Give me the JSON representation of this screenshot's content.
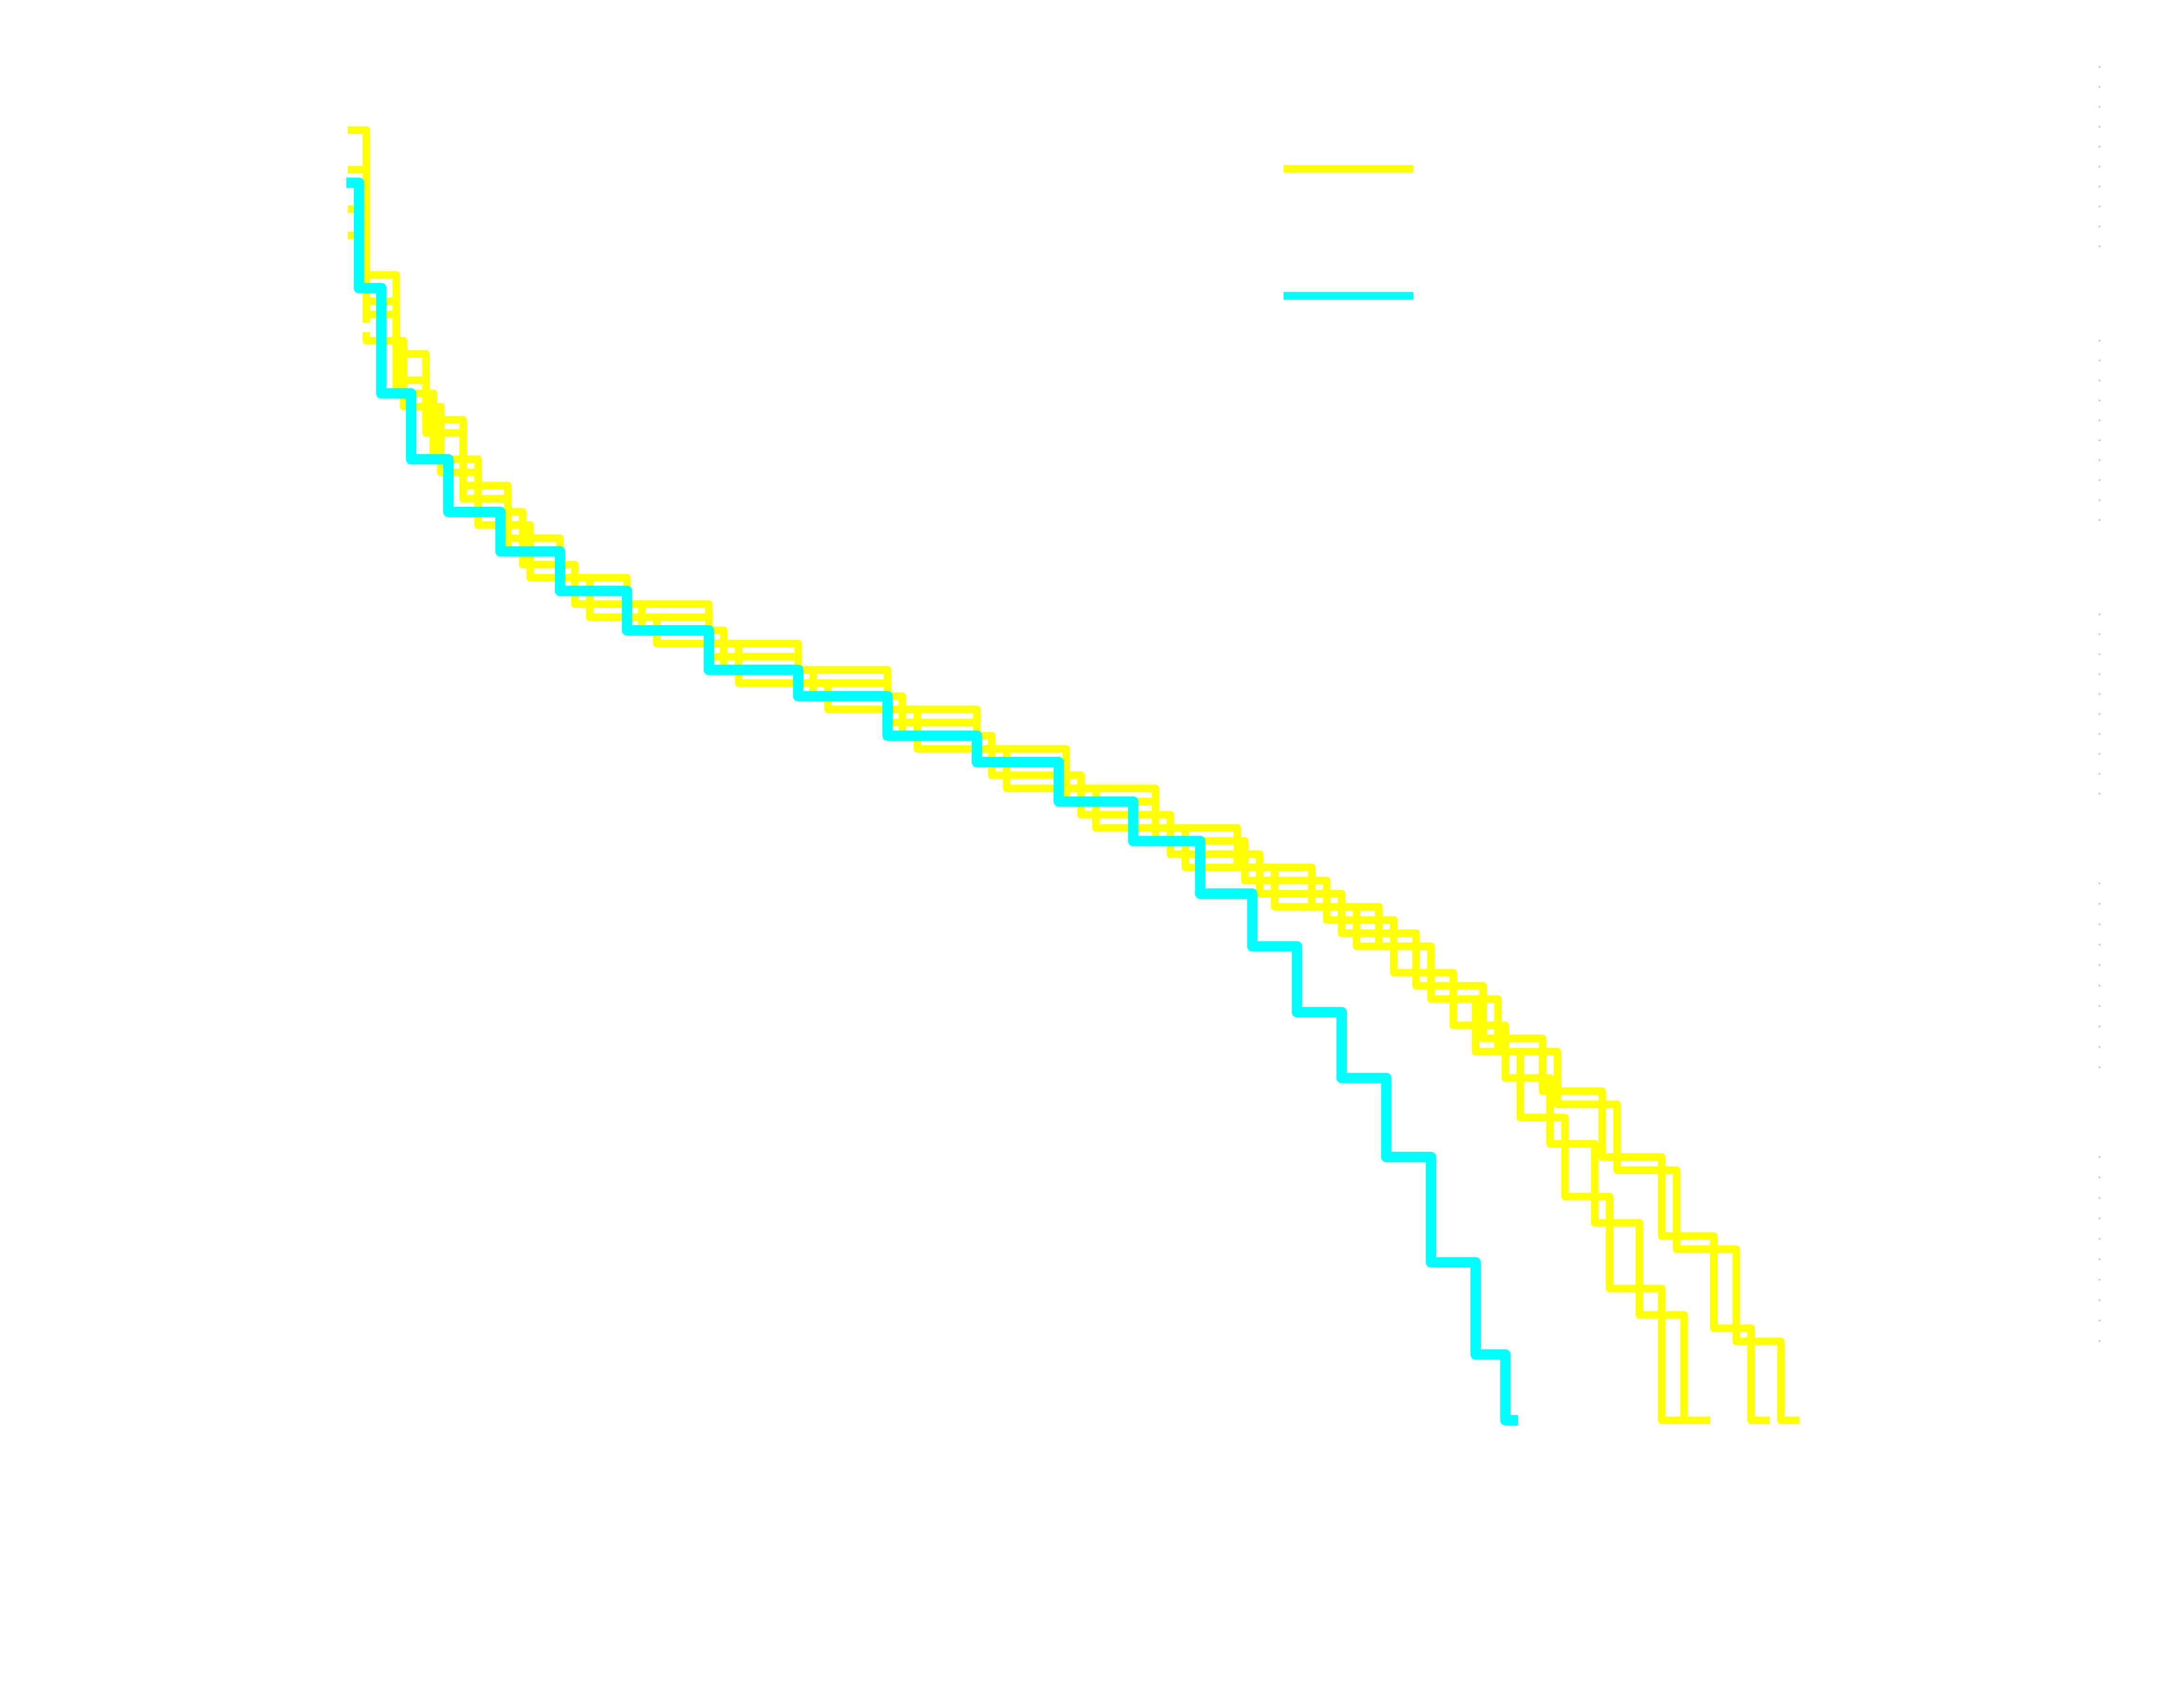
{
  "chart_data": {
    "type": "line",
    "title": "",
    "xlabel": "",
    "ylabel": "",
    "x_scale": "log",
    "y_scale": "log",
    "grid": false,
    "legend": {
      "placement": "top-right",
      "entries": [
        {
          "label": "",
          "color": "#ffff00"
        },
        {
          "label": "",
          "color": "#00ffff"
        }
      ]
    },
    "series": [
      {
        "color": "#ffff00",
        "points": [
          [
            0,
            0.02
          ],
          [
            0.02,
            0.13
          ],
          [
            0.04,
            0.19
          ],
          [
            0.06,
            0.24
          ],
          [
            0.09,
            0.29
          ],
          [
            0.12,
            0.33
          ],
          [
            0.16,
            0.36
          ],
          [
            0.21,
            0.38
          ],
          [
            0.27,
            0.41
          ],
          [
            0.33,
            0.43
          ],
          [
            0.39,
            0.46
          ],
          [
            0.45,
            0.49
          ],
          [
            0.51,
            0.52
          ],
          [
            0.57,
            0.55
          ],
          [
            0.62,
            0.58
          ],
          [
            0.67,
            0.61
          ],
          [
            0.71,
            0.64
          ],
          [
            0.74,
            0.68
          ],
          [
            0.77,
            0.72
          ],
          [
            0.8,
            0.77
          ],
          [
            0.83,
            0.83
          ],
          [
            0.86,
            0.9
          ],
          [
            0.9,
            1.0
          ]
        ]
      },
      {
        "color": "#ffff00",
        "points": [
          [
            0,
            0.05
          ],
          [
            0.02,
            0.15
          ],
          [
            0.04,
            0.21
          ],
          [
            0.06,
            0.25
          ],
          [
            0.09,
            0.3
          ],
          [
            0.12,
            0.34
          ],
          [
            0.16,
            0.37
          ],
          [
            0.21,
            0.39
          ],
          [
            0.27,
            0.42
          ],
          [
            0.33,
            0.44
          ],
          [
            0.39,
            0.47
          ],
          [
            0.45,
            0.5
          ],
          [
            0.51,
            0.53
          ],
          [
            0.57,
            0.56
          ],
          [
            0.63,
            0.59
          ],
          [
            0.68,
            0.62
          ],
          [
            0.72,
            0.66
          ],
          [
            0.76,
            0.7
          ],
          [
            0.79,
            0.74
          ],
          [
            0.82,
            0.79
          ],
          [
            0.85,
            0.85
          ],
          [
            0.88,
            0.92
          ],
          [
            0.91,
            1.0
          ]
        ]
      },
      {
        "color": "#ffff00",
        "points": [
          [
            0,
            0.08
          ],
          [
            0.02,
            0.16
          ],
          [
            0.04,
            0.22
          ],
          [
            0.07,
            0.27
          ],
          [
            0.1,
            0.31
          ],
          [
            0.13,
            0.35
          ],
          [
            0.17,
            0.38
          ],
          [
            0.22,
            0.4
          ],
          [
            0.28,
            0.43
          ],
          [
            0.34,
            0.45
          ],
          [
            0.4,
            0.48
          ],
          [
            0.46,
            0.51
          ],
          [
            0.52,
            0.54
          ],
          [
            0.58,
            0.57
          ],
          [
            0.64,
            0.6
          ],
          [
            0.69,
            0.63
          ],
          [
            0.74,
            0.67
          ],
          [
            0.78,
            0.71
          ],
          [
            0.82,
            0.75
          ],
          [
            0.86,
            0.8
          ],
          [
            0.9,
            0.86
          ],
          [
            0.93,
            0.93
          ],
          [
            0.95,
            1.0
          ]
        ]
      },
      {
        "color": "#ffff00",
        "points": [
          [
            0,
            0.1
          ],
          [
            0.02,
            0.18
          ],
          [
            0.05,
            0.23
          ],
          [
            0.07,
            0.28
          ],
          [
            0.1,
            0.32
          ],
          [
            0.14,
            0.36
          ],
          [
            0.18,
            0.39
          ],
          [
            0.23,
            0.41
          ],
          [
            0.29,
            0.44
          ],
          [
            0.35,
            0.46
          ],
          [
            0.41,
            0.49
          ],
          [
            0.47,
            0.52
          ],
          [
            0.53,
            0.55
          ],
          [
            0.59,
            0.58
          ],
          [
            0.65,
            0.61
          ],
          [
            0.7,
            0.64
          ],
          [
            0.75,
            0.68
          ],
          [
            0.79,
            0.72
          ],
          [
            0.83,
            0.76
          ],
          [
            0.87,
            0.81
          ],
          [
            0.91,
            0.87
          ],
          [
            0.95,
            0.94
          ],
          [
            0.97,
            1.0
          ]
        ]
      },
      {
        "color": "#00ffff",
        "points": [
          [
            0,
            0.06
          ],
          [
            0.01,
            0.14
          ],
          [
            0.03,
            0.22
          ],
          [
            0.05,
            0.27
          ],
          [
            0.08,
            0.31
          ],
          [
            0.12,
            0.34
          ],
          [
            0.16,
            0.37
          ],
          [
            0.21,
            0.4
          ],
          [
            0.27,
            0.43
          ],
          [
            0.33,
            0.45
          ],
          [
            0.39,
            0.48
          ],
          [
            0.45,
            0.5
          ],
          [
            0.5,
            0.53
          ],
          [
            0.55,
            0.56
          ],
          [
            0.59,
            0.6
          ],
          [
            0.62,
            0.64
          ],
          [
            0.65,
            0.69
          ],
          [
            0.68,
            0.74
          ],
          [
            0.71,
            0.8
          ],
          [
            0.74,
            0.88
          ],
          [
            0.77,
            0.95
          ],
          [
            0.78,
            1.0
          ]
        ]
      }
    ]
  }
}
